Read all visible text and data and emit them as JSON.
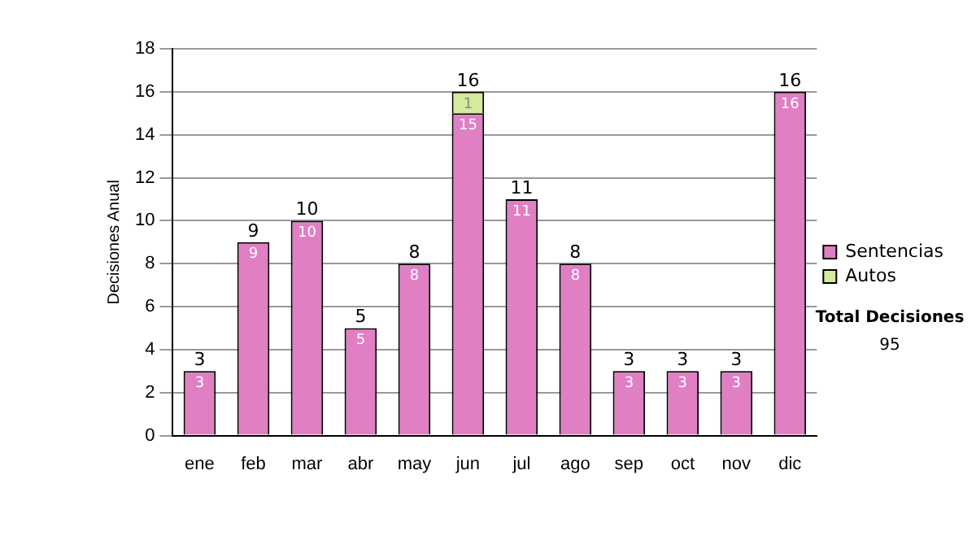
{
  "chart_data": {
    "type": "bar",
    "stacked": true,
    "ylabel": "Decisiones Anual",
    "categories": [
      "ene",
      "feb",
      "mar",
      "abr",
      "may",
      "jun",
      "jul",
      "ago",
      "sep",
      "oct",
      "nov",
      "dic"
    ],
    "series": [
      {
        "name": "Sentencias",
        "color": "#e07fc4",
        "values": [
          3,
          9,
          10,
          5,
          8,
          15,
          11,
          8,
          3,
          3,
          3,
          16
        ]
      },
      {
        "name": "Autos",
        "color": "#d4ea9c",
        "values": [
          null,
          null,
          null,
          null,
          null,
          1,
          null,
          null,
          null,
          null,
          null,
          null
        ]
      }
    ],
    "totals": [
      "3",
      "9",
      "10",
      "5",
      "8",
      "16",
      "11",
      "8",
      "3",
      "3",
      "3",
      "16"
    ],
    "data_labels": true,
    "ylim": [
      0,
      18
    ],
    "yticks": [
      0,
      2,
      4,
      6,
      8,
      10,
      12,
      14,
      16,
      18
    ],
    "grid": "y",
    "legend": "right",
    "annotations": [
      "Total Decisiones",
      "95"
    ]
  }
}
